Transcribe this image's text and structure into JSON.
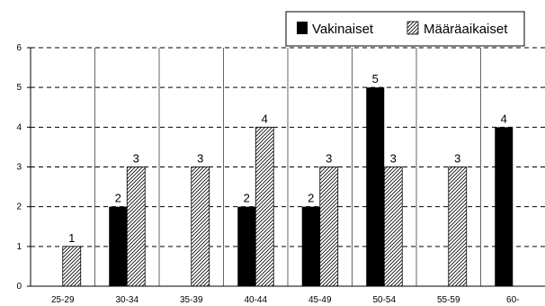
{
  "chart_data": {
    "type": "bar",
    "title": "",
    "xlabel": "",
    "ylabel": "",
    "categories": [
      "25-29",
      "30-34",
      "35-39",
      "40-44",
      "45-49",
      "50-54",
      "55-59",
      "60-"
    ],
    "series": [
      {
        "name": "Vakinaiset",
        "values": [
          0,
          2,
          0,
          2,
          2,
          5,
          0,
          4
        ],
        "color": "#000000",
        "fill": "solid"
      },
      {
        "name": "Määräaikaiset",
        "values": [
          1,
          3,
          3,
          4,
          3,
          3,
          3,
          0
        ],
        "color": "#000000",
        "fill": "diagonal-hatch"
      }
    ],
    "ylim": [
      0,
      6
    ],
    "yticks": [
      "0",
      "1",
      "2",
      "3",
      "4",
      "5",
      "6"
    ],
    "data_labels": true,
    "grid": {
      "horizontal": "dashed",
      "vertical": "solid"
    },
    "legend_position": "top-right"
  }
}
